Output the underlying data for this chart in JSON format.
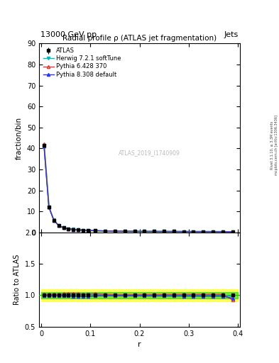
{
  "title_top": "13000 GeV pp",
  "title_top_right": "Jets",
  "title_main": "Radial profile ρ (ATLAS jet fragmentation)",
  "ylabel_main": "fraction/bin",
  "ylabel_ratio": "Ratio to ATLAS",
  "xlabel": "r",
  "watermark": "ATLAS_2019_I1740909",
  "right_label": "Rivet 3.1.10, ≥ 3.3M events",
  "right_label2": "mcplots.cern.ch [arXiv:1306.3436]",
  "ylim_main": [
    0,
    90
  ],
  "ylim_ratio": [
    0.5,
    2.0
  ],
  "yticks_main": [
    0,
    10,
    20,
    30,
    40,
    50,
    60,
    70,
    80,
    90
  ],
  "xticks": [
    0.0,
    0.1,
    0.2,
    0.3,
    0.4
  ],
  "r_values": [
    0.005,
    0.015,
    0.025,
    0.035,
    0.045,
    0.055,
    0.065,
    0.075,
    0.085,
    0.095,
    0.11,
    0.13,
    0.15,
    0.17,
    0.19,
    0.21,
    0.23,
    0.25,
    0.27,
    0.29,
    0.31,
    0.33,
    0.35,
    0.37,
    0.39
  ],
  "atlas_values": [
    41.5,
    12.0,
    5.8,
    3.2,
    2.2,
    1.7,
    1.4,
    1.2,
    1.05,
    0.95,
    0.8,
    0.65,
    0.58,
    0.53,
    0.49,
    0.46,
    0.44,
    0.42,
    0.41,
    0.39,
    0.38,
    0.37,
    0.36,
    0.35,
    0.2
  ],
  "atlas_errors": [
    0.5,
    0.15,
    0.07,
    0.04,
    0.03,
    0.02,
    0.015,
    0.012,
    0.01,
    0.009,
    0.008,
    0.006,
    0.005,
    0.005,
    0.004,
    0.004,
    0.004,
    0.004,
    0.004,
    0.003,
    0.003,
    0.003,
    0.003,
    0.003,
    0.004
  ],
  "herwig_values": [
    41.5,
    12.1,
    5.85,
    3.22,
    2.22,
    1.72,
    1.42,
    1.22,
    1.06,
    0.96,
    0.81,
    0.655,
    0.582,
    0.532,
    0.492,
    0.462,
    0.442,
    0.422,
    0.412,
    0.392,
    0.382,
    0.372,
    0.362,
    0.352,
    0.195
  ],
  "pythia6_values": [
    42.0,
    12.2,
    5.9,
    3.25,
    2.25,
    1.75,
    1.44,
    1.23,
    1.07,
    0.97,
    0.82,
    0.66,
    0.585,
    0.535,
    0.495,
    0.465,
    0.445,
    0.425,
    0.415,
    0.395,
    0.385,
    0.375,
    0.365,
    0.355,
    0.185
  ],
  "pythia8_values": [
    41.3,
    11.9,
    5.75,
    3.18,
    2.18,
    1.68,
    1.38,
    1.18,
    1.03,
    0.93,
    0.79,
    0.645,
    0.575,
    0.525,
    0.485,
    0.455,
    0.435,
    0.415,
    0.405,
    0.385,
    0.375,
    0.365,
    0.355,
    0.345,
    0.19
  ],
  "herwig_ratio": [
    1.0,
    1.008,
    1.009,
    1.006,
    1.009,
    1.012,
    1.014,
    1.017,
    1.01,
    1.011,
    1.012,
    1.008,
    1.003,
    1.004,
    1.004,
    1.004,
    1.005,
    1.005,
    1.005,
    1.005,
    1.005,
    1.005,
    1.006,
    1.006,
    0.975
  ],
  "pythia6_ratio": [
    1.012,
    1.017,
    1.017,
    1.016,
    1.023,
    1.029,
    1.029,
    1.025,
    1.019,
    1.021,
    1.025,
    1.015,
    1.009,
    1.009,
    1.01,
    1.011,
    1.011,
    1.012,
    1.012,
    1.013,
    1.013,
    1.014,
    1.014,
    1.014,
    0.925
  ],
  "pythia8_ratio": [
    0.994,
    0.992,
    0.991,
    0.994,
    0.991,
    0.988,
    0.986,
    0.983,
    0.981,
    0.979,
    0.988,
    0.992,
    0.991,
    0.991,
    0.99,
    0.989,
    0.989,
    0.988,
    0.988,
    0.987,
    0.987,
    0.986,
    0.986,
    0.986,
    0.95
  ],
  "color_atlas": "#000000",
  "color_herwig": "#00BBBB",
  "color_pythia6": "#EE3333",
  "color_pythia8": "#3333EE",
  "color_yellow": "#FFFF00",
  "color_green": "#00CC00",
  "legend_labels": [
    "ATLAS",
    "Herwig 7.2.1 softTune",
    "Pythia 6.428 370",
    "Pythia 8.308 default"
  ]
}
